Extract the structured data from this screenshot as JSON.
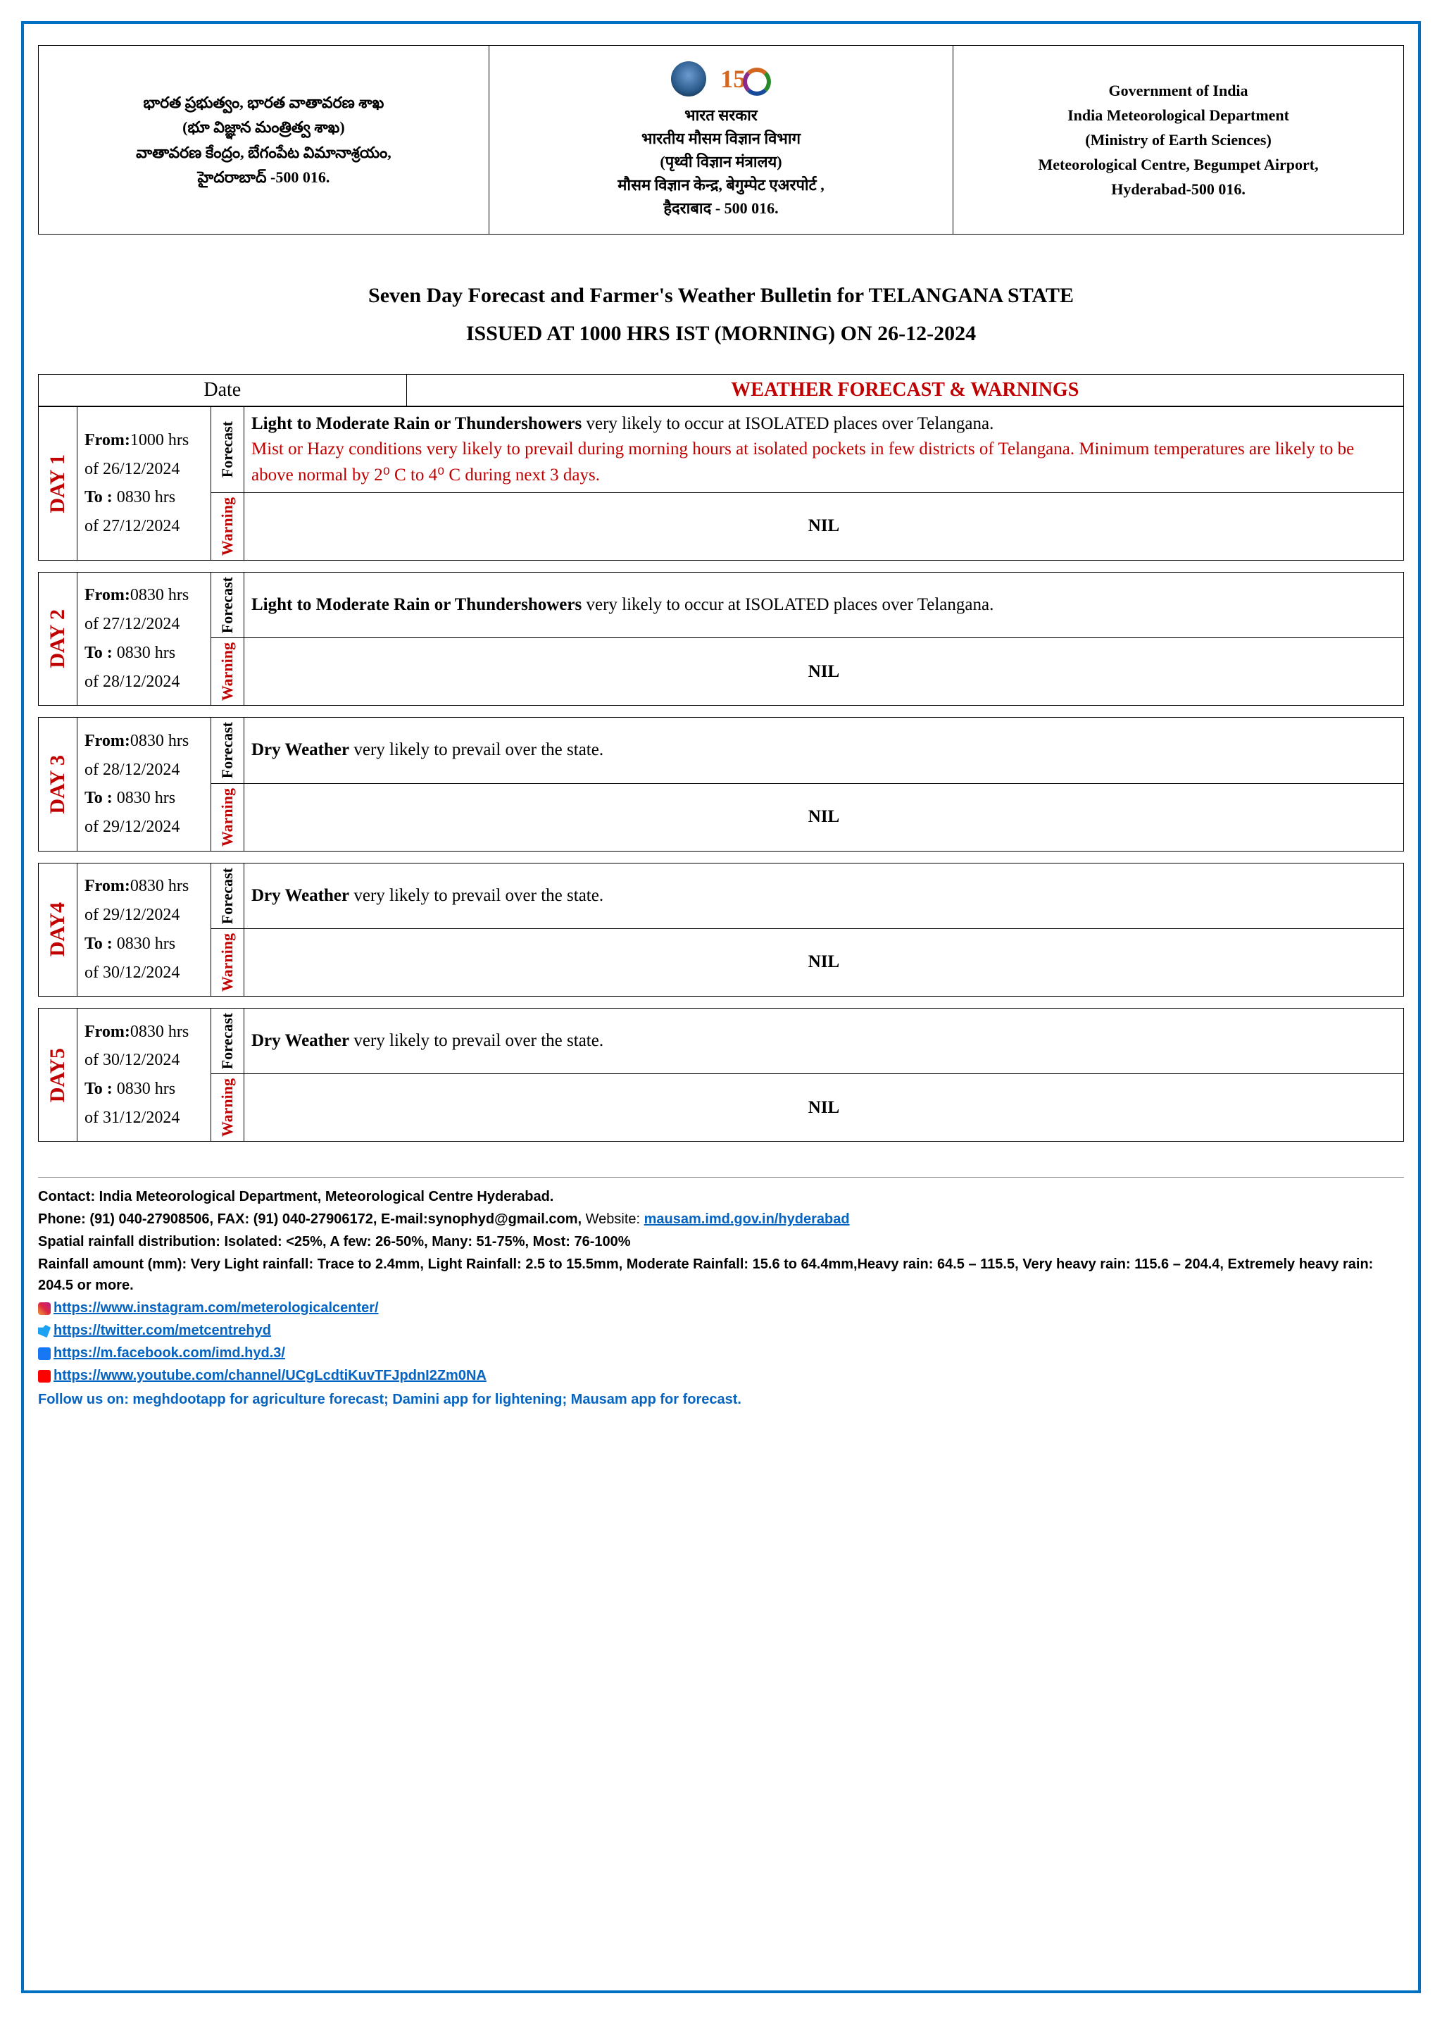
{
  "header": {
    "left": "భారత ప్రభుత్వం, భారత వాతావరణ శాఖ\n(భూ విజ్ఞాన మంత్రిత్వ శాఖ)\nవాతావరణ కేంద్రం, బేగంపేట విమానాశ్రయం,\nహైదరాబాద్ -500 016.",
    "mid_title": "भारत सरकार",
    "mid_lines": "भारतीय मौसम विज्ञान विभाग\n(पृथ्वी विज्ञान मंत्रालय)\nमौसम विज्ञान केन्द्र, बेगुम्पेट एअरपोर्ट ,\nहैदराबाद - 500 016.",
    "right": "Government of India\nIndia Meteorological Department\n(Ministry of Earth Sciences)\nMeteorological Centre, Begumpet Airport,\nHyderabad-500 016."
  },
  "title": {
    "line1": "Seven Day Forecast and Farmer's Weather Bulletin for TELANGANA STATE",
    "line2": "ISSUED AT 1000 HRS IST (MORNING) ON 26-12-2024"
  },
  "table_headers": {
    "date": "Date",
    "main": "WEATHER FORECAST & WARNINGS",
    "forecast": "Forecast",
    "warning": "Warning"
  },
  "labels": {
    "from": "From:",
    "to": "To :",
    "of": "of"
  },
  "days": [
    {
      "day_label": "DAY 1",
      "from_time": "1000 hrs",
      "from_date": "26/12/2024",
      "to_time": "0830 hrs",
      "to_date": "27/12/2024",
      "forecast_bold": "Light to Moderate Rain or Thundershowers",
      "forecast_rest": " very likely to occur at ISOLATED places over Telangana.",
      "forecast_red": "Mist or Hazy conditions very likely to prevail during morning hours at isolated pockets in few districts of Telangana. Minimum temperatures are likely to be above normal by 2⁰ C to 4⁰ C during next 3 days.",
      "warning": "NIL"
    },
    {
      "day_label": "DAY 2",
      "from_time": "0830 hrs",
      "from_date": "27/12/2024",
      "to_time": "0830 hrs",
      "to_date": "28/12/2024",
      "forecast_bold": "Light to Moderate Rain or Thundershowers",
      "forecast_rest": " very likely to occur at ISOLATED places over Telangana.",
      "forecast_red": "",
      "warning": "NIL"
    },
    {
      "day_label": "DAY 3",
      "from_time": "0830 hrs",
      "from_date": "28/12/2024",
      "to_time": "0830 hrs",
      "to_date": "29/12/2024",
      "forecast_bold": "Dry Weather",
      "forecast_rest": " very likely to prevail over the state.",
      "forecast_red": "",
      "warning": "NIL"
    },
    {
      "day_label": "DAY4",
      "from_time": "0830 hrs",
      "from_date": "29/12/2024",
      "to_time": "0830 hrs",
      "to_date": "30/12/2024",
      "forecast_bold": "Dry Weather",
      "forecast_rest": " very likely to prevail over the state.",
      "forecast_red": "",
      "warning": "NIL"
    },
    {
      "day_label": "DAY5",
      "from_time": "0830 hrs",
      "from_date": "30/12/2024",
      "to_time": "0830 hrs",
      "to_date": "31/12/2024",
      "forecast_bold": "Dry Weather",
      "forecast_rest": " very likely to prevail over the state.",
      "forecast_red": "",
      "warning": "NIL"
    }
  ],
  "footer": {
    "contact": "Contact: India Meteorological Department, Meteorological Centre Hyderabad.",
    "phone": "Phone: (91) 040-27908506, FAX: (91) 040-27906172, E-mail:synophyd@gmail.com, ",
    "website_label": "Website: ",
    "website": "mausam.imd.gov.in/hyderabad",
    "spatial": "Spatial rainfall distribution: Isolated: <25%, A few: 26-50%, Many: 51-75%, Most: 76-100%",
    "rainfall": "Rainfall amount (mm): Very Light rainfall: Trace to 2.4mm, Light Rainfall: 2.5 to 15.5mm, Moderate Rainfall: 15.6 to 64.4mm,Heavy rain: 64.5 – 115.5, Very heavy rain: 115.6 – 204.4, Extremely heavy rain: 204.5 or more.",
    "ig": "https://www.instagram.com/meterologicalcenter/",
    "tw": "https://twitter.com/metcentrehyd",
    "fb": "https://m.facebook.com/imd.hyd.3/",
    "yt": "https://www.youtube.com/channel/UCgLcdtiKuvTFJpdnI2Zm0NA",
    "follow": "Follow us on: meghdootapp for agriculture forecast; Damini app for lightening; Mausam app for forecast."
  }
}
